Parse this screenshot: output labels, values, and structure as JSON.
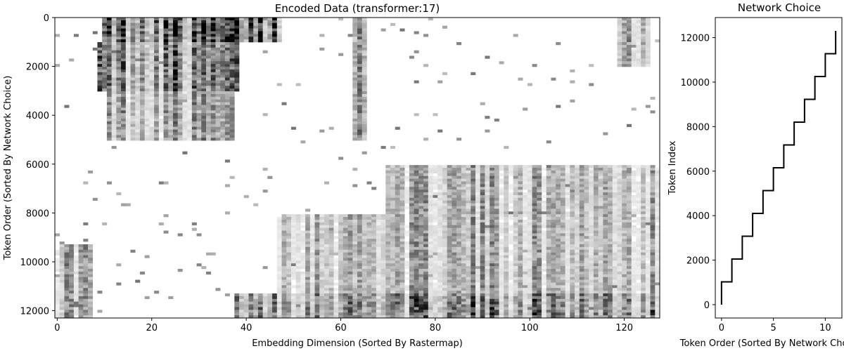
{
  "chart_data": [
    {
      "type": "heatmap",
      "title": "Encoded Data (transformer:17)",
      "xlabel": "Embedding Dimension (Sorted By Rastermap)",
      "ylabel": "Token Order (Sorted By Network Choice)",
      "xlim": [
        -0.5,
        127.5
      ],
      "ylim": [
        12300,
        0
      ],
      "xticks": [
        0,
        20,
        40,
        60,
        80,
        100,
        120
      ],
      "yticks": [
        0,
        2000,
        4000,
        6000,
        8000,
        10000,
        12000
      ],
      "colormap": "gray_r",
      "n_columns": 128,
      "n_rows": 12300,
      "blocks": [
        {
          "rows": [
            0,
            1000
          ],
          "cols": [
            10,
            47
          ],
          "intensity": 0.75
        },
        {
          "rows": [
            1000,
            3000
          ],
          "cols": [
            9,
            38
          ],
          "intensity": 0.55
        },
        {
          "rows": [
            3000,
            5000
          ],
          "cols": [
            11,
            37
          ],
          "intensity": 0.4
        },
        {
          "rows": [
            0,
            5000
          ],
          "cols": [
            63,
            65
          ],
          "intensity": 0.45
        },
        {
          "rows": [
            0,
            2000
          ],
          "cols": [
            119,
            125
          ],
          "intensity": 0.45
        },
        {
          "rows": [
            6000,
            12300
          ],
          "cols": [
            70,
            127
          ],
          "intensity": 0.35
        },
        {
          "rows": [
            8000,
            12300
          ],
          "cols": [
            47,
            127
          ],
          "intensity": 0.35
        },
        {
          "rows": [
            9300,
            12300
          ],
          "cols": [
            0,
            7
          ],
          "intensity": 0.4
        },
        {
          "rows": [
            11300,
            12300
          ],
          "cols": [
            38,
            127
          ],
          "intensity": 0.55
        }
      ]
    },
    {
      "type": "line",
      "title": "Network Choice",
      "xlabel": "Token Order (Sorted By Network Choice)",
      "ylabel": "Token Index",
      "xlim": [
        -0.6,
        11.6
      ],
      "ylim": [
        -600,
        12900
      ],
      "xticks": [
        0,
        5,
        10
      ],
      "yticks": [
        0,
        2000,
        4000,
        6000,
        8000,
        10000,
        12000
      ],
      "series": [
        {
          "step": "post",
          "x": [
            0,
            1,
            2,
            3,
            4,
            5,
            6,
            7,
            8,
            9,
            10,
            11
          ],
          "y": [
            0,
            1025,
            2050,
            3075,
            4100,
            5125,
            6150,
            7175,
            8200,
            9225,
            10250,
            11275
          ],
          "y_end": 12300
        }
      ]
    }
  ]
}
